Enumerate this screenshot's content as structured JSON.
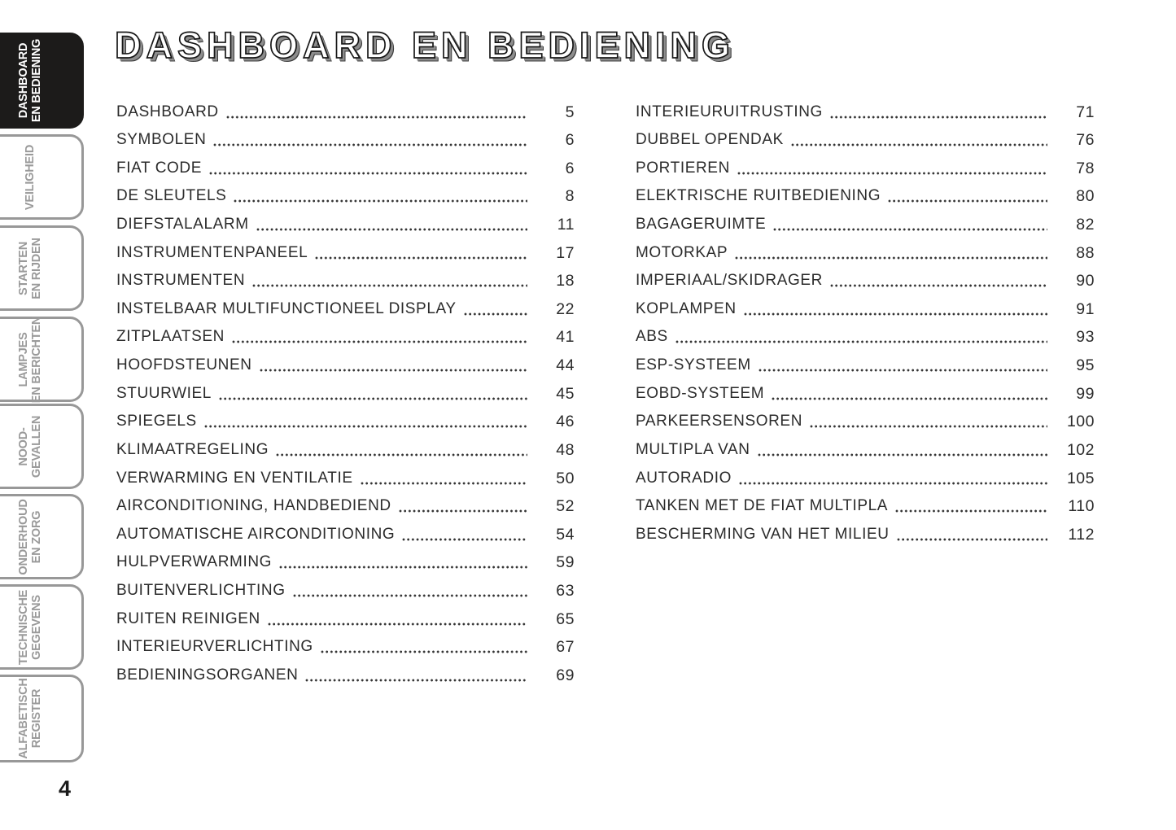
{
  "title": "DASHBOARD EN BEDIENING",
  "page": {
    "number": "4"
  },
  "sidebar": {
    "tabs": [
      {
        "label": "DASHBOARD\nEN BEDIENING",
        "active": true
      },
      {
        "label": "VEILIGHEID",
        "active": false
      },
      {
        "label": "STARTEN\nEN RIJDEN",
        "active": false
      },
      {
        "label": "LAMPJES\nEN BERICHTEN",
        "active": false
      },
      {
        "label": "NOOD-\nGEVALLEN",
        "active": false
      },
      {
        "label": "ONDERHOUD\nEN ZORG",
        "active": false
      },
      {
        "label": "TECHNISCHE\nGEGEVENS",
        "active": false
      },
      {
        "label": "ALFABETISCH\nREGISTER",
        "active": false
      }
    ]
  },
  "toc": {
    "left": [
      {
        "label": "DASHBOARD",
        "page": "5"
      },
      {
        "label": "SYMBOLEN",
        "page": "6"
      },
      {
        "label": "FIAT CODE",
        "page": "6"
      },
      {
        "label": "DE SLEUTELS",
        "page": "8"
      },
      {
        "label": "DIEFSTALALARM",
        "page": "11"
      },
      {
        "label": "INSTRUMENTENPANEEL",
        "page": "17"
      },
      {
        "label": "INSTRUMENTEN",
        "page": "18"
      },
      {
        "label": "INSTELBAAR MULTIFUNCTIONEEL DISPLAY",
        "page": "22"
      },
      {
        "label": "ZITPLAATSEN",
        "page": "41"
      },
      {
        "label": "HOOFDSTEUNEN",
        "page": "44"
      },
      {
        "label": "STUURWIEL",
        "page": "45"
      },
      {
        "label": "SPIEGELS",
        "page": "46"
      },
      {
        "label": "KLIMAATREGELING",
        "page": "48"
      },
      {
        "label": "VERWARMING EN VENTILATIE",
        "page": "50"
      },
      {
        "label": "AIRCONDITIONING, HANDBEDIEND",
        "page": "52"
      },
      {
        "label": "AUTOMATISCHE AIRCONDITIONING",
        "page": "54"
      },
      {
        "label": "HULPVERWARMING",
        "page": "59"
      },
      {
        "label": "BUITENVERLICHTING",
        "page": "63"
      },
      {
        "label": "RUITEN REINIGEN",
        "page": "65"
      },
      {
        "label": "INTERIEURVERLICHTING",
        "page": "67"
      },
      {
        "label": "BEDIENINGSORGANEN",
        "page": "69"
      }
    ],
    "right": [
      {
        "label": "INTERIEURUITRUSTING",
        "page": "71"
      },
      {
        "label": "DUBBEL OPENDAK",
        "page": "76"
      },
      {
        "label": "PORTIEREN",
        "page": "78"
      },
      {
        "label": "ELEKTRISCHE RUITBEDIENING",
        "page": "80"
      },
      {
        "label": "BAGAGERUIMTE",
        "page": "82"
      },
      {
        "label": "MOTORKAP",
        "page": "88"
      },
      {
        "label": "IMPERIAAL/SKIDRAGER",
        "page": "90"
      },
      {
        "label": "KOPLAMPEN",
        "page": "91"
      },
      {
        "label": "ABS",
        "page": "93"
      },
      {
        "label": "ESP-SYSTEEM",
        "page": "95"
      },
      {
        "label": "EOBD-SYSTEEM",
        "page": "99"
      },
      {
        "label": "PARKEERSENSOREN",
        "page": "100"
      },
      {
        "label": "MULTIPLA VAN",
        "page": "102"
      },
      {
        "label": "AUTORADIO",
        "page": "105"
      },
      {
        "label": "TANKEN MET DE FIAT MULTIPLA",
        "page": "110"
      },
      {
        "label": "BESCHERMING VAN HET MILIEU",
        "page": "112"
      }
    ]
  }
}
